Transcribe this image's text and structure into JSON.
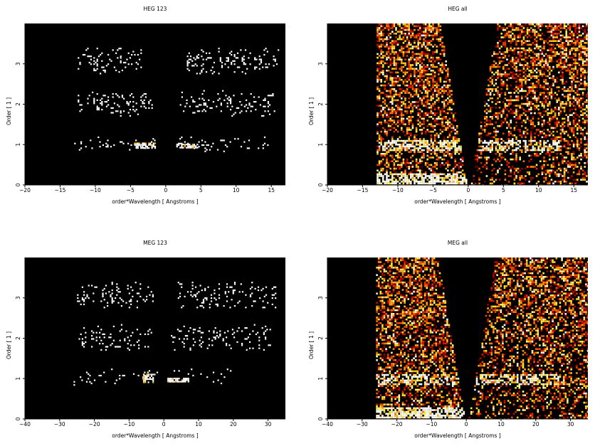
{
  "chart_data": [
    {
      "type": "heatmap",
      "title": "HEG 123",
      "xlabel": "order*Wavelength [ Angstroms ]",
      "ylabel": "Order [ 1 ]",
      "xlim": [
        -20,
        17
      ],
      "ylim": [
        0,
        4
      ],
      "xticks": [
        -20,
        -15,
        -10,
        -5,
        0,
        5,
        10,
        15
      ],
      "yticks": [
        0,
        1,
        2,
        3
      ],
      "colormap": "black-to-white heat",
      "background": "#000000",
      "bands": [
        {
          "order": 1,
          "x": [
            -13.0,
            -1.2
          ],
          "y": [
            0.85,
            1.2
          ],
          "density": 0.1
        },
        {
          "order": 1,
          "x": [
            1.5,
            16.0
          ],
          "y": [
            0.85,
            1.2
          ],
          "density": 0.08
        },
        {
          "order": 2,
          "x": [
            -12.5,
            -2.0
          ],
          "y": [
            1.7,
            2.35
          ],
          "density": 0.2
        },
        {
          "order": 2,
          "x": [
            2.0,
            15.5
          ],
          "y": [
            1.7,
            2.35
          ],
          "density": 0.18
        },
        {
          "order": 3,
          "x": [
            -12.5,
            -3.5
          ],
          "y": [
            2.75,
            3.4
          ],
          "density": 0.18
        },
        {
          "order": 3,
          "x": [
            3.0,
            16.0
          ],
          "y": [
            2.75,
            3.4
          ],
          "density": 0.17
        }
      ],
      "hotspots": [
        {
          "x": [
            -4.5,
            -1.5
          ],
          "y": [
            0.93,
            1.05
          ]
        },
        {
          "x": [
            1.5,
            4.5
          ],
          "y": [
            0.93,
            1.02
          ]
        }
      ]
    },
    {
      "type": "heatmap",
      "title": "HEG all",
      "xlabel": "order*Wavelength [ Angstroms ]",
      "ylabel": "Order [ 1 ]",
      "xlim": [
        -20,
        17
      ],
      "ylim": [
        0,
        4
      ],
      "xticks": [
        -20,
        -15,
        -10,
        -5,
        0,
        5,
        10,
        15
      ],
      "yticks": [
        0,
        1,
        2,
        3
      ],
      "colormap": "black-red-orange-yellow-white heat",
      "background": "#000000",
      "coverage_x": [
        -13.0,
        17.0
      ],
      "gap_at_zero": true
    },
    {
      "type": "heatmap",
      "title": "MEG 123",
      "xlabel": "order*Wavelength [ Angstroms ]",
      "ylabel": "Order [ 1 ]",
      "xlim": [
        -40,
        35
      ],
      "ylim": [
        0,
        4
      ],
      "xticks": [
        -40,
        -30,
        -20,
        -10,
        0,
        10,
        20,
        30
      ],
      "yticks": [
        0,
        1,
        2,
        3
      ],
      "colormap": "black-to-white heat",
      "background": "#000000",
      "bands": [
        {
          "order": 1,
          "x": [
            -26.0,
            -2.0
          ],
          "y": [
            0.85,
            1.25
          ],
          "density": 0.09
        },
        {
          "order": 1,
          "x": [
            1.0,
            20.0
          ],
          "y": [
            0.9,
            1.25
          ],
          "density": 0.06
        },
        {
          "order": 2,
          "x": [
            -25.0,
            -3.0
          ],
          "y": [
            1.7,
            2.35
          ],
          "density": 0.16
        },
        {
          "order": 2,
          "x": [
            2.0,
            31.0
          ],
          "y": [
            1.7,
            2.35
          ],
          "density": 0.14
        },
        {
          "order": 3,
          "x": [
            -25.0,
            -3.0
          ],
          "y": [
            2.75,
            3.4
          ],
          "density": 0.16
        },
        {
          "order": 3,
          "x": [
            4.0,
            32.0
          ],
          "y": [
            2.75,
            3.4
          ],
          "density": 0.14
        }
      ],
      "hotspots": [
        {
          "x": [
            -6.0,
            -2.5
          ],
          "y": [
            0.92,
            1.12
          ]
        },
        {
          "x": [
            1.0,
            7.0
          ],
          "y": [
            0.93,
            1.02
          ]
        }
      ]
    },
    {
      "type": "heatmap",
      "title": "MEG all",
      "xlabel": "order*Wavelength [ Angstroms ]",
      "ylabel": "Order [ 1 ]",
      "xlim": [
        -40,
        35
      ],
      "ylim": [
        0,
        4
      ],
      "xticks": [
        -40,
        -30,
        -20,
        -10,
        0,
        10,
        20,
        30
      ],
      "yticks": [
        0,
        1,
        2,
        3
      ],
      "colormap": "black-red-orange-yellow-white heat",
      "background": "#000000",
      "coverage_x": [
        -26.0,
        35.0
      ],
      "gap_at_zero": true
    }
  ]
}
